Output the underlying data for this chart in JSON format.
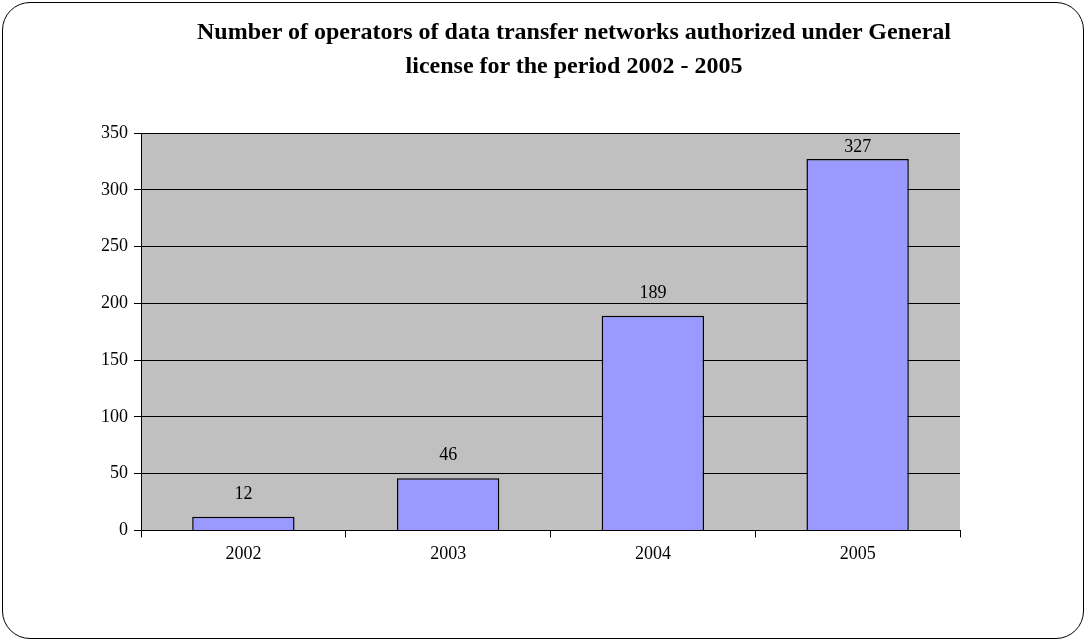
{
  "chart_data": {
    "type": "bar",
    "title": "Number of operators of data transfer networks authorized under General license for the period 2002 - 2005",
    "categories": [
      "2002",
      "2003",
      "2004",
      "2005"
    ],
    "values": [
      12,
      46,
      189,
      327
    ],
    "color": "#9999ff",
    "ylim": [
      0,
      350
    ],
    "yticks": [
      0,
      50,
      100,
      150,
      200,
      250,
      300,
      350
    ],
    "grid": "y",
    "data_labels": true,
    "legend": false
  }
}
